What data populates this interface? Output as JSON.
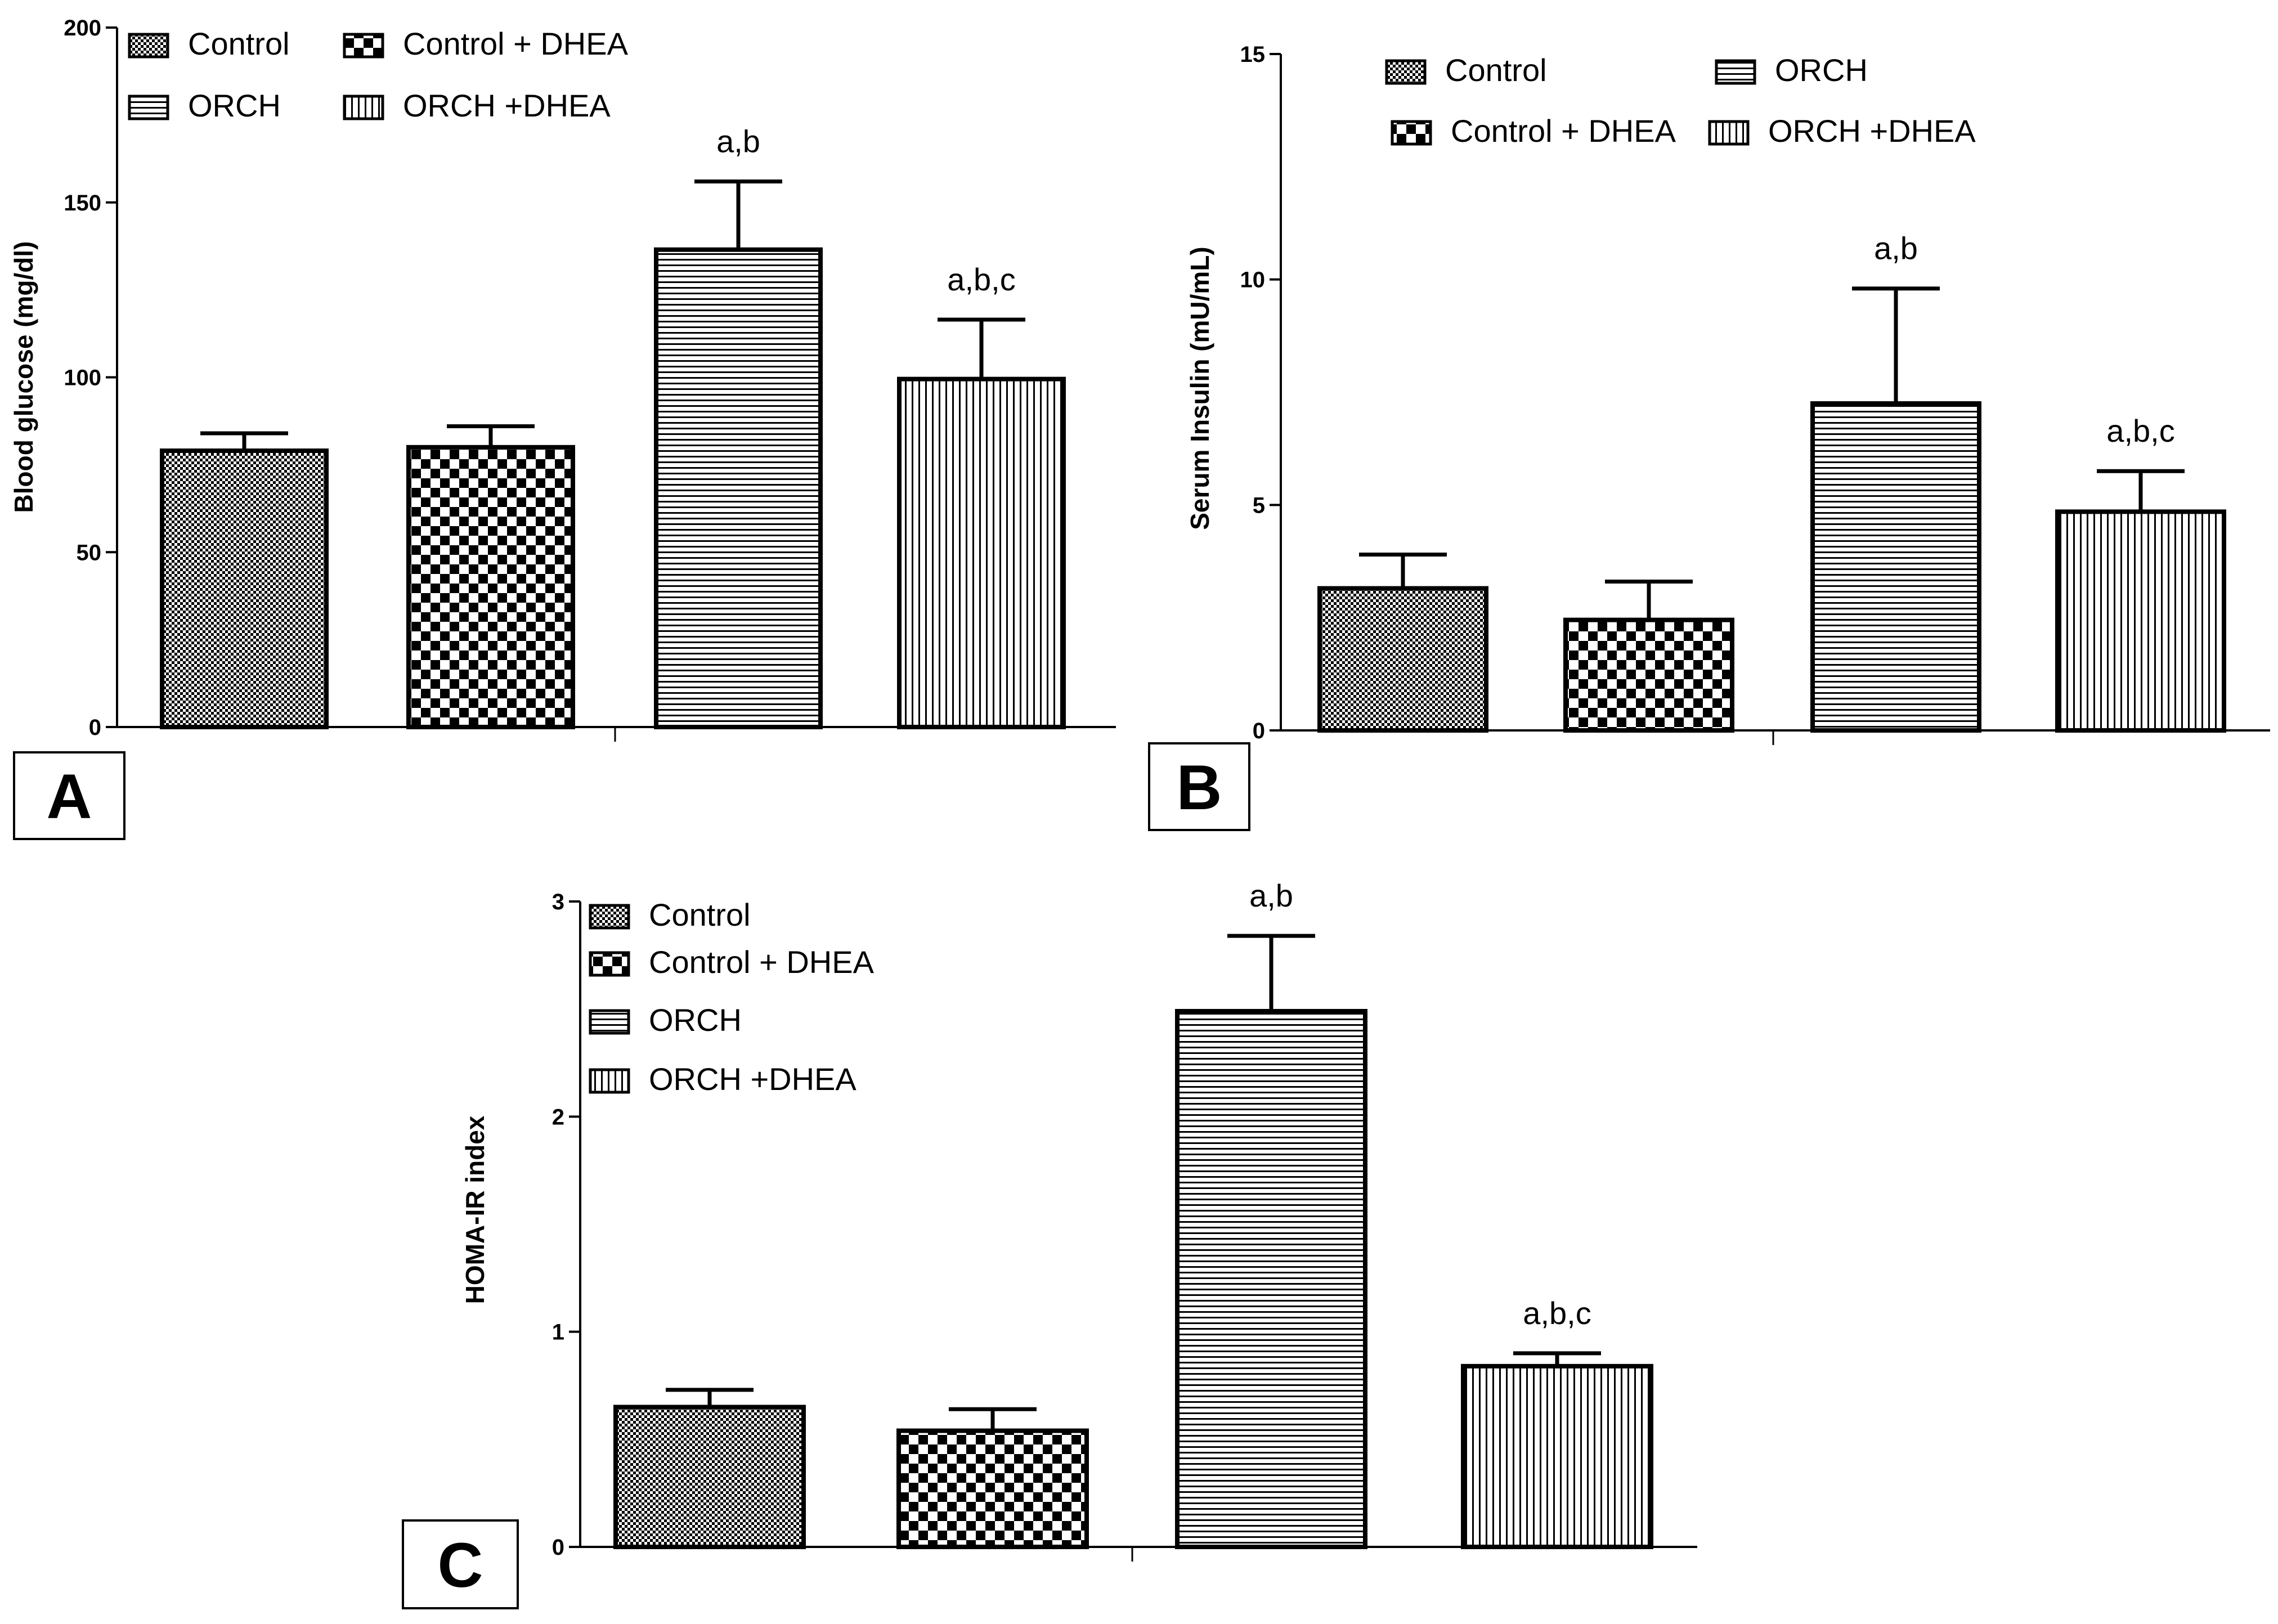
{
  "chart_data": [
    {
      "type": "bar",
      "panel_label": "A",
      "ylabel": "Blood glucose (mg/dl)",
      "xlabel": "",
      "categories": [
        "Control",
        "Control + DHEA",
        "ORCH",
        "ORCH +DHEA"
      ],
      "values": [
        79,
        80,
        136.5,
        99.5
      ],
      "errors": [
        5,
        6,
        19.5,
        17
      ],
      "annotations": [
        "",
        "",
        "a,b",
        "a,b,c"
      ],
      "ylim": [
        0,
        200
      ],
      "yticks": [
        "0",
        "50",
        "100",
        "150",
        "200"
      ],
      "legend": [
        "Control",
        "Control + DHEA",
        "ORCH",
        "ORCH +DHEA"
      ]
    },
    {
      "type": "bar",
      "panel_label": "B",
      "ylabel": "Serum Insulin (mU/mL)",
      "xlabel": "",
      "categories": [
        "Control",
        "Control + DHEA",
        "ORCH",
        "ORCH +DHEA"
      ],
      "values": [
        3.15,
        2.45,
        7.25,
        4.85
      ],
      "errors": [
        0.75,
        0.85,
        2.55,
        0.9
      ],
      "annotations": [
        "",
        "",
        "a,b",
        "a,b,c"
      ],
      "ylim": [
        0,
        15
      ],
      "yticks": [
        "0",
        "5",
        "10",
        "15"
      ],
      "legend": [
        "Control",
        "ORCH",
        "Control + DHEA",
        "ORCH +DHEA"
      ]
    },
    {
      "type": "bar",
      "panel_label": "C",
      "ylabel": "HOMA-IR index",
      "xlabel": "",
      "categories": [
        "Control",
        "Control + DHEA",
        "ORCH",
        "ORCH +DHEA"
      ],
      "values": [
        0.65,
        0.54,
        2.49,
        0.84
      ],
      "errors": [
        0.08,
        0.1,
        0.35,
        0.06
      ],
      "annotations": [
        "",
        "",
        "a,b",
        "a,b,c"
      ],
      "ylim": [
        0,
        3
      ],
      "yticks": [
        "0",
        "1",
        "2",
        "3"
      ],
      "legend": [
        "Control",
        "Control + DHEA",
        "ORCH",
        "ORCH +DHEA"
      ]
    }
  ]
}
